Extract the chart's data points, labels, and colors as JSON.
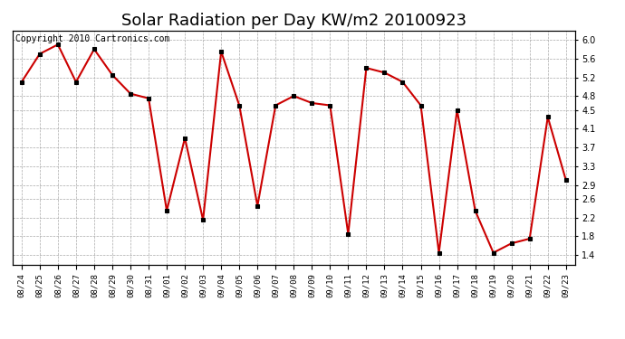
{
  "title": "Solar Radiation per Day KW/m2 20100923",
  "copyright": "Copyright 2010 Cartronics.com",
  "dates": [
    "08/24",
    "08/25",
    "08/26",
    "08/27",
    "08/28",
    "08/29",
    "08/30",
    "08/31",
    "09/01",
    "09/02",
    "09/03",
    "09/04",
    "09/05",
    "09/06",
    "09/07",
    "09/08",
    "09/09",
    "09/10",
    "09/11",
    "09/12",
    "09/13",
    "09/14",
    "09/15",
    "09/16",
    "09/17",
    "09/18",
    "09/19",
    "09/20",
    "09/21",
    "09/22",
    "09/23"
  ],
  "values": [
    5.1,
    5.7,
    5.9,
    5.1,
    5.8,
    5.25,
    4.85,
    4.75,
    2.35,
    3.9,
    2.15,
    5.75,
    4.6,
    2.45,
    4.6,
    4.8,
    4.65,
    4.6,
    1.85,
    5.4,
    5.3,
    5.1,
    4.6,
    1.45,
    4.5,
    2.35,
    1.45,
    1.65,
    1.75,
    4.35,
    3.0
  ],
  "line_color": "#cc0000",
  "marker_color": "#000000",
  "bg_color": "#ffffff",
  "grid_color": "#aaaaaa",
  "ylim": [
    1.2,
    6.2
  ],
  "yticks": [
    1.4,
    1.8,
    2.2,
    2.6,
    2.9,
    3.3,
    3.7,
    4.1,
    4.5,
    4.8,
    5.2,
    5.6,
    6.0
  ],
  "title_fontsize": 13,
  "copyright_fontsize": 7,
  "tick_fontsize": 7,
  "xlabel_fontsize": 6.5
}
